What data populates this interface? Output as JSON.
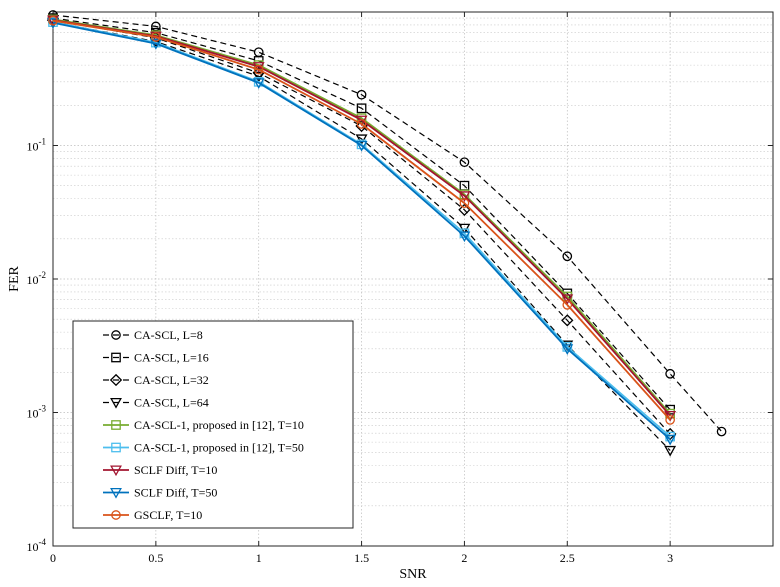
{
  "chart_data": {
    "type": "line",
    "title": "",
    "xlabel": "SNR",
    "ylabel": "FER",
    "xscale": "linear",
    "yscale": "log",
    "xlim": [
      0,
      3.5
    ],
    "ylim": [
      0.0001,
      1
    ],
    "xticks": [
      0,
      0.5,
      1,
      1.5,
      2,
      2.5,
      3
    ],
    "xtick_labels": [
      "0",
      "0.5",
      "1",
      "1.5",
      "2",
      "2.5",
      "3"
    ],
    "yticks": [
      0.0001,
      0.001,
      0.01,
      0.1
    ],
    "ytick_labels": [
      {
        "base": "10",
        "exp": "-4"
      },
      {
        "base": "10",
        "exp": "-3"
      },
      {
        "base": "10",
        "exp": "-2"
      },
      {
        "base": "10",
        "exp": "-1"
      }
    ],
    "grid": true,
    "legend_position": "bottom-left",
    "series": [
      {
        "name": "CA-SCL, L=8",
        "color": "#000000",
        "style": "dashed",
        "marker": "circle",
        "x": [
          0,
          0.5,
          1,
          1.5,
          2,
          2.5,
          3,
          3.25
        ],
        "y": [
          0.95,
          0.78,
          0.5,
          0.24,
          0.075,
          0.0148,
          0.00195,
          0.00072
        ]
      },
      {
        "name": "CA-SCL, L=16",
        "color": "#000000",
        "style": "dashed",
        "marker": "square",
        "x": [
          0,
          0.5,
          1,
          1.5,
          2,
          2.5,
          3
        ],
        "y": [
          0.9,
          0.7,
          0.43,
          0.19,
          0.05,
          0.0078,
          0.00105
        ]
      },
      {
        "name": "CA-SCL, L=32",
        "color": "#000000",
        "style": "dashed",
        "marker": "diamond",
        "x": [
          0,
          0.5,
          1,
          1.5,
          2,
          2.5,
          3
        ],
        "y": [
          0.87,
          0.64,
          0.35,
          0.14,
          0.033,
          0.0049,
          0.00069
        ]
      },
      {
        "name": "CA-SCL, L=64",
        "color": "#000000",
        "style": "dashed",
        "marker": "triangle-down",
        "x": [
          0,
          0.5,
          1,
          1.5,
          2,
          2.5,
          3
        ],
        "y": [
          0.84,
          0.6,
          0.33,
          0.112,
          0.024,
          0.0032,
          0.00052
        ]
      },
      {
        "name": "CA-SCL-1, proposed in [12], T=10",
        "color": "#77ac30",
        "style": "solid",
        "marker": "square",
        "x": [
          0,
          0.5,
          1,
          1.5,
          2,
          2.5,
          3
        ],
        "y": [
          0.88,
          0.67,
          0.4,
          0.16,
          0.043,
          0.0074,
          0.00098
        ]
      },
      {
        "name": "CA-SCL-1, proposed in [12], T=50",
        "color": "#4dbeee",
        "style": "solid",
        "marker": "square",
        "x": [
          0,
          0.5,
          1,
          1.5,
          2,
          2.5,
          3
        ],
        "y": [
          0.84,
          0.59,
          0.3,
          0.102,
          0.022,
          0.0031,
          0.00066
        ]
      },
      {
        "name": "SCLF Diff, T=10",
        "color": "#a2142f",
        "style": "solid",
        "marker": "triangle-down",
        "x": [
          0,
          0.5,
          1,
          1.5,
          2,
          2.5,
          3
        ],
        "y": [
          0.87,
          0.66,
          0.39,
          0.155,
          0.042,
          0.0071,
          0.00095
        ]
      },
      {
        "name": "SCLF Diff, T=50",
        "color": "#0072bd",
        "style": "solid",
        "marker": "triangle-down",
        "x": [
          0,
          0.5,
          1,
          1.5,
          2,
          2.5,
          3
        ],
        "y": [
          0.83,
          0.58,
          0.295,
          0.1,
          0.021,
          0.003,
          0.00063
        ]
      },
      {
        "name": "GSCLF, T=10",
        "color": "#d95319",
        "style": "solid",
        "marker": "circle",
        "x": [
          0,
          0.5,
          1,
          1.5,
          2,
          2.5,
          3
        ],
        "y": [
          0.86,
          0.65,
          0.37,
          0.145,
          0.037,
          0.0064,
          0.00088
        ]
      }
    ]
  }
}
